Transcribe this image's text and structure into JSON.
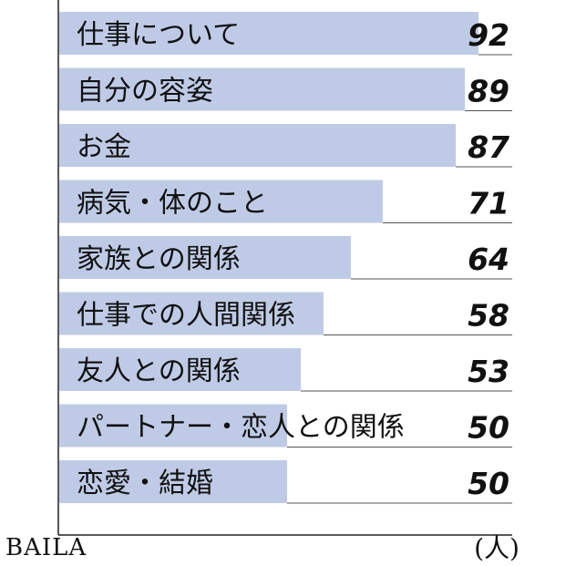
{
  "logo": "BAILA",
  "chart_data": {
    "type": "bar",
    "orientation": "horizontal",
    "categories": [
      "仕事について",
      "自分の容姿",
      "お金",
      "病気・体のこと",
      "家族との関係",
      "仕事での人間関係",
      "友人との関係",
      "パートナー・恋人との関係",
      "恋愛・結婚"
    ],
    "values": [
      92,
      89,
      87,
      71,
      64,
      58,
      53,
      50,
      50
    ],
    "unit": "(人)",
    "xlim": [
      0,
      100
    ],
    "bar_color": "#bfcbe6",
    "grid": false
  }
}
